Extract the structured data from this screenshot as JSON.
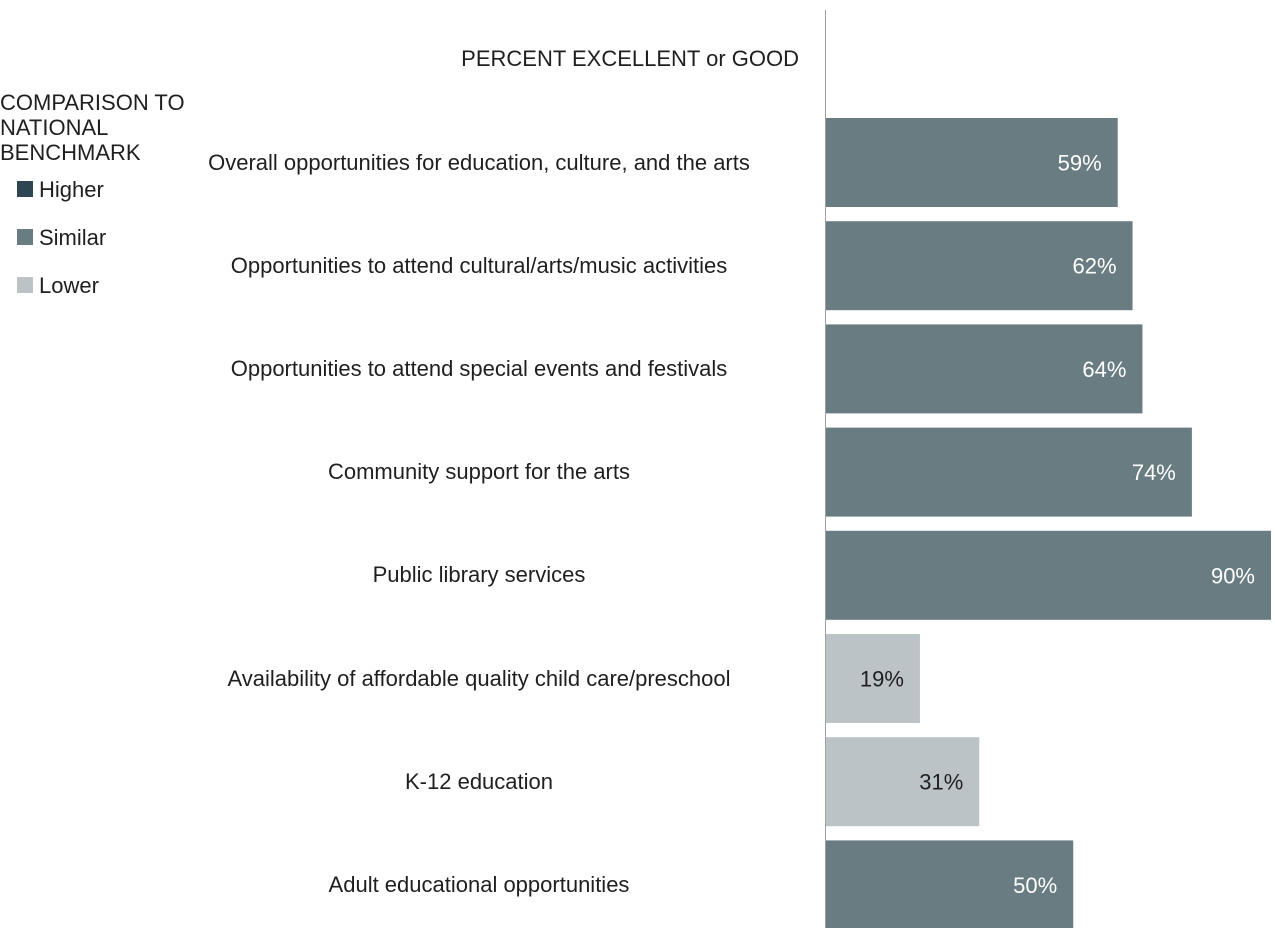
{
  "chart_data": {
    "type": "bar",
    "title": "PERCENT EXCELLENT or GOOD",
    "categories": [
      "Overall opportunities for education, culture, and the arts",
      "Opportunities to attend cultural/arts/music activities",
      "Opportunities to attend special events and festivals",
      "Community support for the arts",
      "Public library services",
      "Availability of affordable quality child care/preschool",
      "K-12 education",
      "Adult educational opportunities"
    ],
    "values": [
      59,
      62,
      64,
      74,
      90,
      19,
      31,
      50
    ],
    "value_labels": [
      "59%",
      "62%",
      "64%",
      "74%",
      "90%",
      "19%",
      "31%",
      "50%"
    ],
    "comparison": [
      "Similar",
      "Similar",
      "Similar",
      "Similar",
      "Similar",
      "Lower",
      "Lower",
      "Similar"
    ],
    "xlim": [
      0,
      90
    ],
    "orientation": "horizontal",
    "legend": {
      "title": "COMPARISON TO NATIONAL BENCHMARK",
      "placement": "left",
      "items": [
        {
          "label": "Higher",
          "color": "#2e4651"
        },
        {
          "label": "Similar",
          "color": "#697c82"
        },
        {
          "label": "Lower",
          "color": "#bcc3c6"
        }
      ]
    },
    "colors": {
      "Higher": "#2e4651",
      "Similar": "#697c82",
      "Lower": "#bcc3c6",
      "label_on_dark": "#ffffff",
      "label_on_light": "#1f1f1f",
      "axis": "#a0a0a0"
    }
  }
}
